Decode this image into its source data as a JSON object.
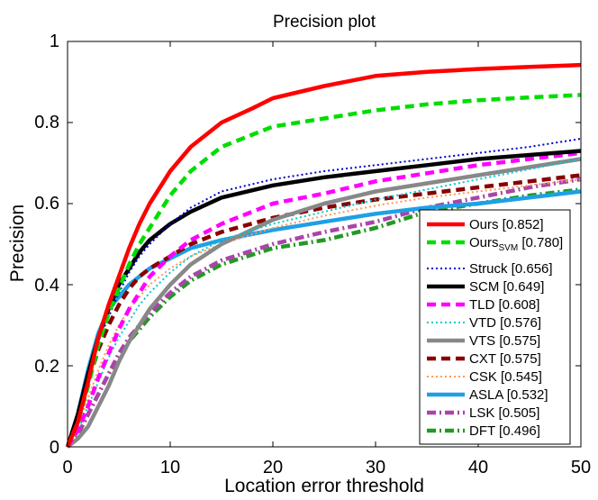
{
  "chart_data": {
    "type": "line",
    "title": "Precision plot",
    "xlabel": "Location error threshold",
    "ylabel": "Precision",
    "xlim": [
      0,
      50
    ],
    "ylim": [
      0,
      1
    ],
    "xticks": [
      "0",
      "10",
      "20",
      "30",
      "40",
      "50"
    ],
    "yticks": [
      "0",
      "0.2",
      "0.4",
      "0.6",
      "0.8",
      "1"
    ],
    "grid": false,
    "legend_position": "lower-right",
    "series": [
      {
        "name": "Ours [0.852]",
        "label_main": "Ours",
        "label_sub": "",
        "label_score": " [0.852]",
        "color": "#ff0000",
        "style": "solid",
        "x": [
          0,
          1,
          2,
          3,
          4,
          5,
          6,
          7,
          8,
          9,
          10,
          12,
          15,
          18,
          20,
          25,
          30,
          35,
          40,
          45,
          50
        ],
        "y": [
          0,
          0.06,
          0.16,
          0.27,
          0.35,
          0.42,
          0.49,
          0.55,
          0.6,
          0.64,
          0.68,
          0.74,
          0.8,
          0.835,
          0.86,
          0.89,
          0.915,
          0.925,
          0.932,
          0.937,
          0.942
        ]
      },
      {
        "name": "Ours_SVM [0.780]",
        "label_main": "Ours",
        "label_sub": "SVM",
        "label_score": " [0.780]",
        "color": "#00dd00",
        "style": "dash",
        "x": [
          0,
          1,
          2,
          3,
          4,
          5,
          6,
          7,
          8,
          9,
          10,
          12,
          15,
          18,
          20,
          25,
          30,
          35,
          40,
          45,
          50
        ],
        "y": [
          0,
          0.06,
          0.15,
          0.25,
          0.33,
          0.39,
          0.45,
          0.5,
          0.54,
          0.58,
          0.62,
          0.68,
          0.74,
          0.77,
          0.79,
          0.81,
          0.83,
          0.845,
          0.855,
          0.862,
          0.868
        ]
      },
      {
        "name": "Struck [0.656]",
        "label_main": "Struck",
        "label_sub": "",
        "label_score": " [0.656]",
        "color": "#0000cc",
        "style": "dot",
        "x": [
          0,
          1,
          2,
          3,
          4,
          5,
          6,
          7,
          8,
          10,
          12,
          15,
          20,
          25,
          30,
          35,
          40,
          45,
          50
        ],
        "y": [
          0,
          0.07,
          0.17,
          0.26,
          0.32,
          0.38,
          0.43,
          0.47,
          0.5,
          0.55,
          0.59,
          0.63,
          0.66,
          0.68,
          0.695,
          0.71,
          0.725,
          0.74,
          0.76
        ]
      },
      {
        "name": "SCM [0.649]",
        "label_main": "SCM",
        "label_sub": "",
        "label_score": " [0.649]",
        "color": "#000000",
        "style": "solid",
        "x": [
          0,
          1,
          2,
          3,
          4,
          5,
          6,
          7,
          8,
          10,
          12,
          15,
          20,
          25,
          30,
          35,
          40,
          45,
          50
        ],
        "y": [
          0,
          0.08,
          0.18,
          0.27,
          0.34,
          0.4,
          0.44,
          0.48,
          0.51,
          0.55,
          0.58,
          0.615,
          0.645,
          0.665,
          0.68,
          0.695,
          0.71,
          0.72,
          0.73
        ]
      },
      {
        "name": "TLD [0.608]",
        "label_main": "TLD",
        "label_sub": "",
        "label_score": " [0.608]",
        "color": "#ff00ff",
        "style": "dash",
        "x": [
          0,
          1,
          2,
          3,
          4,
          5,
          6,
          7,
          8,
          10,
          12,
          15,
          20,
          25,
          30,
          35,
          40,
          45,
          50
        ],
        "y": [
          0,
          0.04,
          0.1,
          0.17,
          0.23,
          0.29,
          0.34,
          0.38,
          0.42,
          0.47,
          0.51,
          0.55,
          0.6,
          0.625,
          0.655,
          0.675,
          0.695,
          0.71,
          0.725
        ]
      },
      {
        "name": "VTD [0.576]",
        "label_main": "VTD",
        "label_sub": "",
        "label_score": " [0.576]",
        "color": "#00cccc",
        "style": "dot",
        "x": [
          0,
          1,
          2,
          3,
          4,
          5,
          6,
          7,
          8,
          10,
          12,
          15,
          20,
          25,
          30,
          35,
          40,
          45,
          50
        ],
        "y": [
          0,
          0.04,
          0.1,
          0.16,
          0.22,
          0.27,
          0.31,
          0.35,
          0.38,
          0.43,
          0.47,
          0.51,
          0.55,
          0.58,
          0.61,
          0.635,
          0.66,
          0.685,
          0.71
        ]
      },
      {
        "name": "VTS [0.575]",
        "label_main": "VTS",
        "label_sub": "",
        "label_score": " [0.575]",
        "color": "#888888",
        "style": "solid",
        "x": [
          0,
          1,
          2,
          3,
          4,
          5,
          6,
          7,
          8,
          10,
          12,
          15,
          20,
          25,
          30,
          35,
          40,
          45,
          50
        ],
        "y": [
          0,
          0.02,
          0.05,
          0.1,
          0.15,
          0.21,
          0.26,
          0.3,
          0.34,
          0.4,
          0.45,
          0.5,
          0.56,
          0.6,
          0.63,
          0.65,
          0.67,
          0.69,
          0.71
        ]
      },
      {
        "name": "CXT [0.575]",
        "label_main": "CXT",
        "label_sub": "",
        "label_score": " [0.575]",
        "color": "#880000",
        "style": "dash",
        "x": [
          0,
          1,
          2,
          3,
          4,
          5,
          6,
          7,
          8,
          10,
          12,
          15,
          20,
          25,
          30,
          35,
          40,
          45,
          50
        ],
        "y": [
          0,
          0.07,
          0.16,
          0.24,
          0.3,
          0.35,
          0.39,
          0.42,
          0.44,
          0.47,
          0.5,
          0.53,
          0.565,
          0.59,
          0.61,
          0.625,
          0.64,
          0.655,
          0.67
        ]
      },
      {
        "name": "CSK [0.545]",
        "label_main": "CSK",
        "label_sub": "",
        "label_score": " [0.545]",
        "color": "#ff9955",
        "style": "dot",
        "x": [
          0,
          1,
          2,
          3,
          4,
          5,
          6,
          7,
          8,
          10,
          12,
          15,
          20,
          25,
          30,
          35,
          40,
          45,
          50
        ],
        "y": [
          0,
          0.05,
          0.12,
          0.19,
          0.25,
          0.3,
          0.34,
          0.37,
          0.4,
          0.44,
          0.47,
          0.5,
          0.54,
          0.57,
          0.595,
          0.615,
          0.63,
          0.645,
          0.66
        ]
      },
      {
        "name": "ASLA [0.532]",
        "label_main": "ASLA",
        "label_sub": "",
        "label_score": " [0.532]",
        "color": "#1ea0e6",
        "style": "solid",
        "x": [
          0,
          1,
          2,
          3,
          4,
          5,
          6,
          7,
          8,
          10,
          12,
          15,
          20,
          25,
          30,
          35,
          40,
          45,
          50
        ],
        "y": [
          0,
          0.08,
          0.19,
          0.28,
          0.34,
          0.37,
          0.4,
          0.42,
          0.44,
          0.465,
          0.49,
          0.51,
          0.535,
          0.555,
          0.575,
          0.59,
          0.6,
          0.615,
          0.63
        ]
      },
      {
        "name": "LSK [0.505]",
        "label_main": "LSK",
        "label_sub": "",
        "label_score": " [0.505]",
        "color": "#aa44aa",
        "style": "dashdot",
        "x": [
          0,
          1,
          2,
          3,
          4,
          5,
          6,
          7,
          8,
          10,
          12,
          15,
          20,
          25,
          30,
          35,
          40,
          45,
          50
        ],
        "y": [
          0,
          0.03,
          0.08,
          0.13,
          0.18,
          0.23,
          0.27,
          0.3,
          0.33,
          0.38,
          0.42,
          0.46,
          0.5,
          0.53,
          0.555,
          0.59,
          0.615,
          0.64,
          0.66
        ]
      },
      {
        "name": "DFT [0.496]",
        "label_main": "DFT",
        "label_sub": "",
        "label_score": " [0.496]",
        "color": "#229922",
        "style": "dashdot",
        "x": [
          0,
          1,
          2,
          3,
          4,
          5,
          6,
          7,
          8,
          10,
          12,
          15,
          20,
          25,
          30,
          35,
          40,
          45,
          50
        ],
        "y": [
          0,
          0.03,
          0.08,
          0.13,
          0.18,
          0.22,
          0.26,
          0.29,
          0.32,
          0.37,
          0.41,
          0.45,
          0.49,
          0.51,
          0.54,
          0.58,
          0.6,
          0.62,
          0.635
        ]
      }
    ]
  }
}
